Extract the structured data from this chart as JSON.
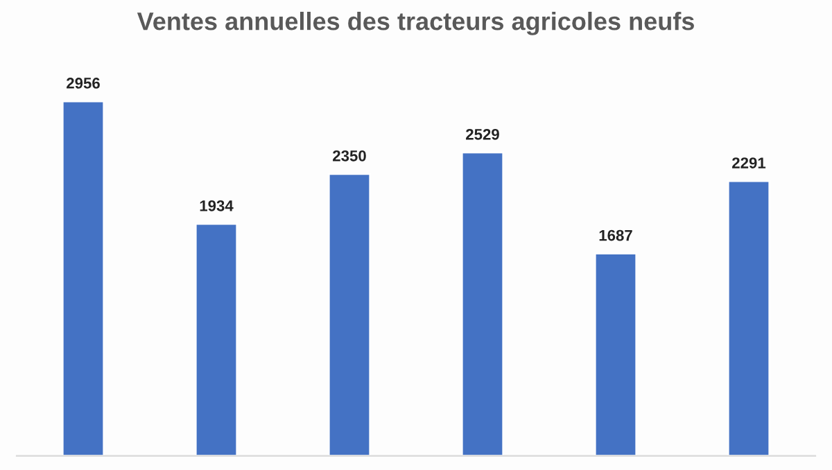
{
  "chart_data": {
    "type": "bar",
    "title": "Ventes annuelles des tracteurs agricoles neufs",
    "categories": [
      null,
      null,
      null,
      null,
      null,
      null
    ],
    "values": [
      2956,
      1934,
      2350,
      2529,
      1687,
      2291
    ],
    "color": "#4472c4",
    "data_labels": true,
    "grid": false,
    "legend": false
  }
}
